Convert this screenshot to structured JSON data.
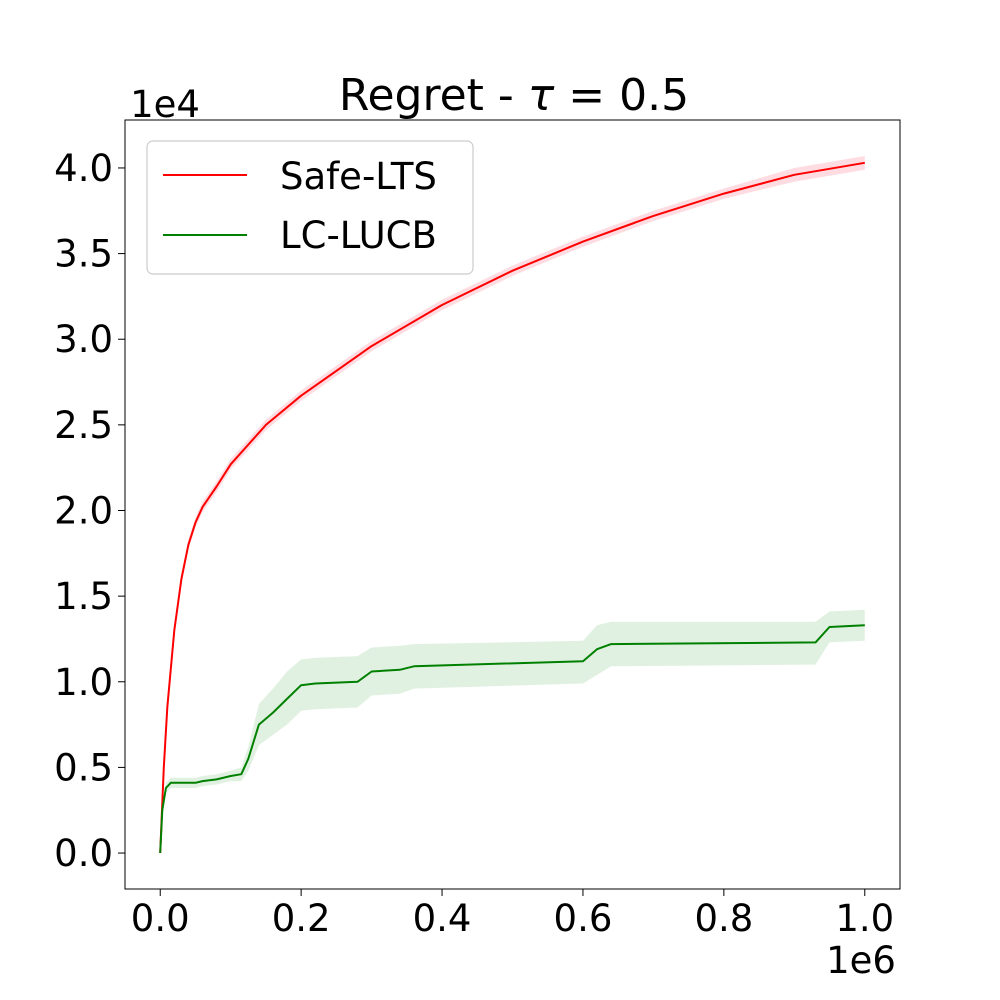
{
  "chart_data": {
    "type": "line",
    "title": "Regret - τ = 0.5",
    "title_parts": {
      "prefix": "Regret - ",
      "symbol": "τ",
      "suffix": " = 0.5"
    },
    "xlabel": "",
    "ylabel": "",
    "x_multiplier": "1e6",
    "y_multiplier": "1e4",
    "xlim": [
      -0.05,
      1.05
    ],
    "ylim": [
      -0.21,
      4.28
    ],
    "x_ticks": [
      0.0,
      0.2,
      0.4,
      0.6,
      0.8,
      1.0
    ],
    "x_tick_labels": [
      "0.0",
      "0.2",
      "0.4",
      "0.6",
      "0.8",
      "1.0"
    ],
    "y_ticks": [
      0.0,
      0.5,
      1.0,
      1.5,
      2.0,
      2.5,
      3.0,
      3.5,
      4.0
    ],
    "y_tick_labels": [
      "0.0",
      "0.5",
      "1.0",
      "1.5",
      "2.0",
      "2.5",
      "3.0",
      "3.5",
      "4.0"
    ],
    "grid": false,
    "legend_position": "upper-left",
    "series": [
      {
        "name": "Safe-LTS",
        "color": "#ff0000",
        "band_color": "#ffc0cb",
        "x": [
          0.0,
          0.005,
          0.01,
          0.02,
          0.03,
          0.04,
          0.05,
          0.06,
          0.07,
          0.08,
          0.1,
          0.15,
          0.2,
          0.3,
          0.4,
          0.5,
          0.6,
          0.7,
          0.8,
          0.9,
          1.0
        ],
        "y": [
          0.0,
          0.5,
          0.85,
          1.3,
          1.6,
          1.8,
          1.93,
          2.02,
          2.08,
          2.14,
          2.27,
          2.5,
          2.67,
          2.96,
          3.2,
          3.4,
          3.57,
          3.72,
          3.85,
          3.96,
          4.03
        ],
        "upper": [
          0.0,
          0.52,
          0.88,
          1.33,
          1.63,
          1.83,
          1.96,
          2.05,
          2.11,
          2.17,
          2.3,
          2.53,
          2.7,
          2.99,
          3.23,
          3.43,
          3.6,
          3.75,
          3.88,
          4.0,
          4.07
        ],
        "lower": [
          0.0,
          0.48,
          0.82,
          1.27,
          1.57,
          1.77,
          1.9,
          1.99,
          2.05,
          2.11,
          2.24,
          2.47,
          2.64,
          2.93,
          3.17,
          3.37,
          3.54,
          3.69,
          3.82,
          3.92,
          3.99
        ]
      },
      {
        "name": "LC-LUCB",
        "color": "#008000",
        "band_color": "#c8e6c8",
        "x": [
          0.0,
          0.003,
          0.008,
          0.015,
          0.05,
          0.06,
          0.08,
          0.1,
          0.115,
          0.125,
          0.14,
          0.16,
          0.18,
          0.2,
          0.22,
          0.28,
          0.3,
          0.34,
          0.36,
          0.6,
          0.62,
          0.64,
          0.93,
          0.95,
          1.0
        ],
        "y": [
          0.0,
          0.25,
          0.38,
          0.41,
          0.41,
          0.42,
          0.43,
          0.45,
          0.46,
          0.55,
          0.75,
          0.82,
          0.9,
          0.98,
          0.99,
          1.0,
          1.06,
          1.07,
          1.09,
          1.12,
          1.19,
          1.22,
          1.23,
          1.32,
          1.33
        ],
        "upper": [
          0.0,
          0.27,
          0.41,
          0.44,
          0.44,
          0.45,
          0.46,
          0.48,
          0.5,
          0.62,
          0.87,
          0.96,
          1.06,
          1.13,
          1.14,
          1.15,
          1.2,
          1.21,
          1.22,
          1.24,
          1.33,
          1.35,
          1.35,
          1.41,
          1.42
        ],
        "lower": [
          0.0,
          0.23,
          0.35,
          0.38,
          0.38,
          0.39,
          0.4,
          0.42,
          0.42,
          0.48,
          0.63,
          0.69,
          0.75,
          0.83,
          0.84,
          0.85,
          0.92,
          0.93,
          0.96,
          0.99,
          1.04,
          1.09,
          1.1,
          1.23,
          1.24
        ]
      }
    ]
  }
}
